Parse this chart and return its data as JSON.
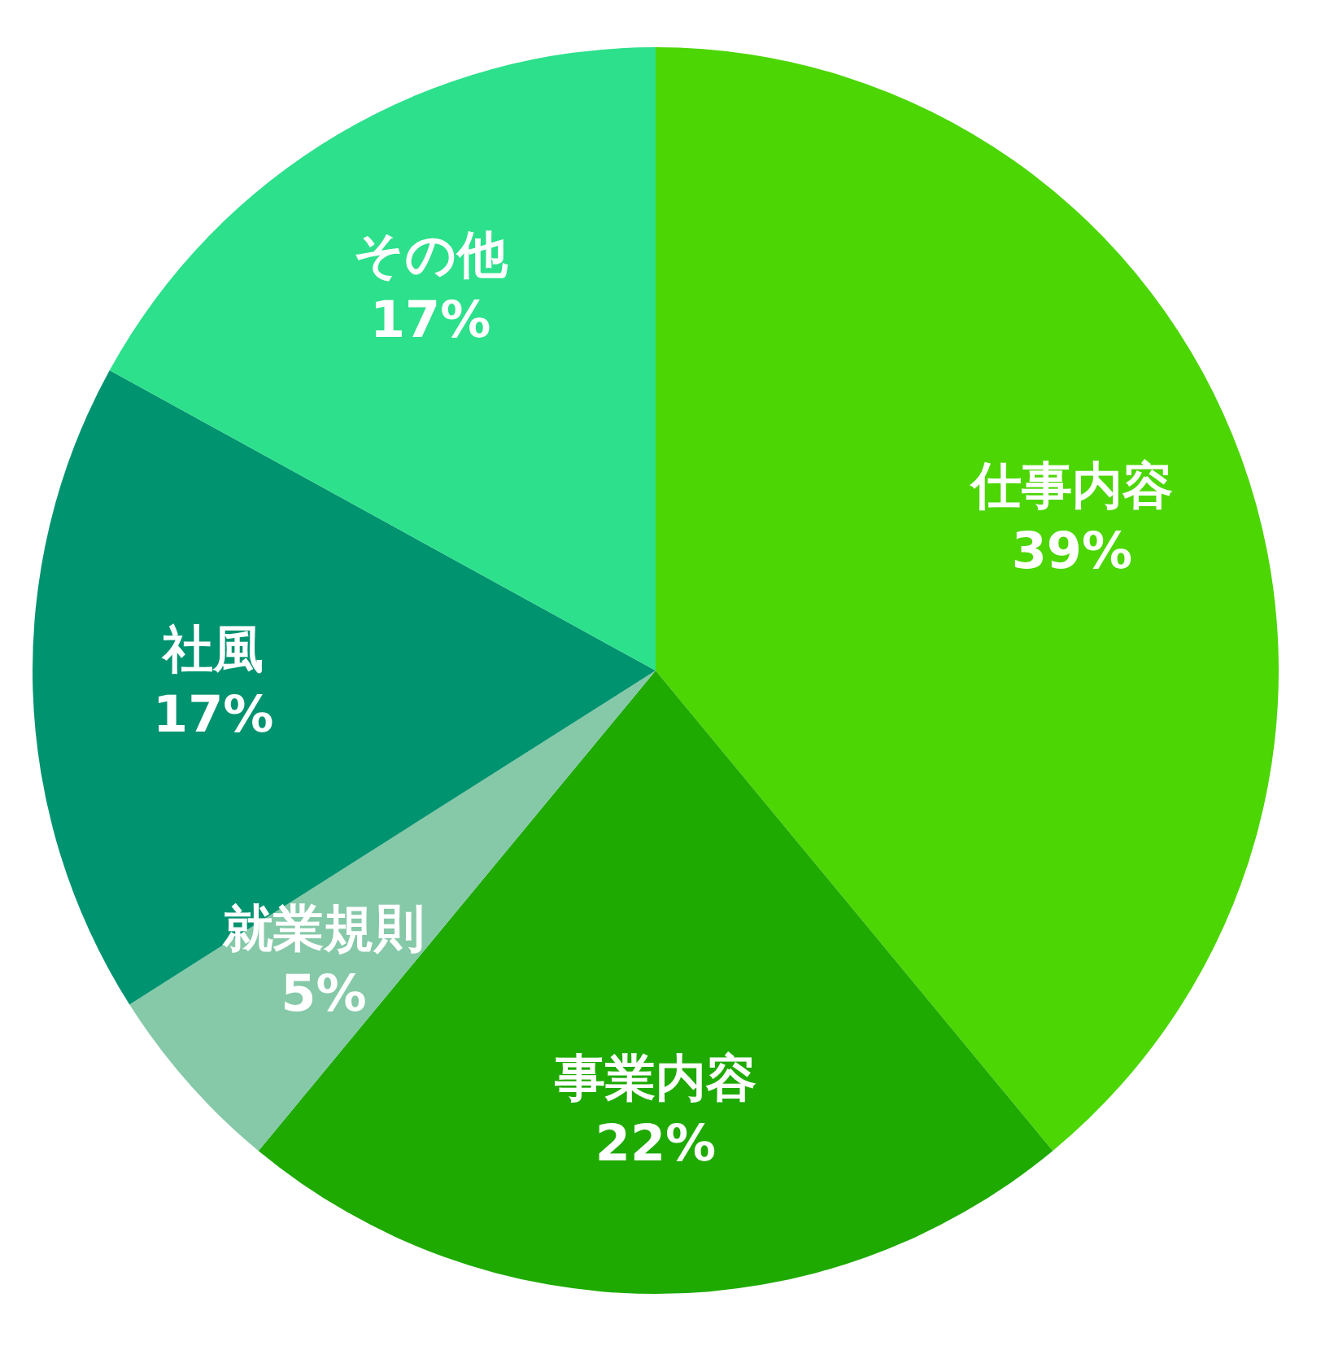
{
  "chart_data": {
    "type": "pie",
    "categories": [
      "仕事内容",
      "事業内容",
      "就業規則",
      "社風",
      "その他"
    ],
    "values": [
      39,
      22,
      5,
      17,
      17
    ],
    "colors": [
      "#4cd604",
      "#1eaa00",
      "#85c9a8",
      "#009370",
      "#2de08c"
    ],
    "value_labels": [
      "39%",
      "22%",
      "5%",
      "17%",
      "17%"
    ],
    "legend": false
  }
}
